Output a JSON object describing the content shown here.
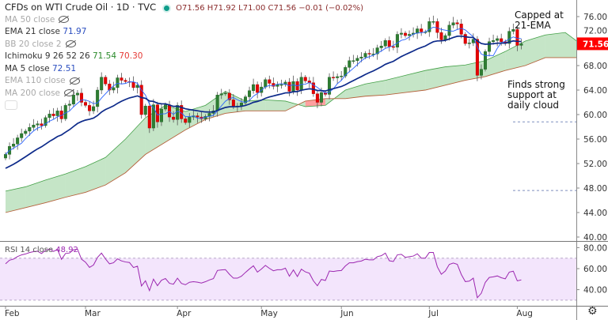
{
  "header": {
    "title": "CFDs on WTI Crude Oil · 1D · TVC",
    "ohlc": "O71.56 H71.92 L71.00 C71.56 −0.01 (−0.02%)"
  },
  "indicators": [
    {
      "label": "MA 50 close",
      "value": "",
      "hidden": true
    },
    {
      "label": "EMA 21 close",
      "value": "71.97",
      "hidden": false
    },
    {
      "label": "BB 20 close 2",
      "value": "",
      "hidden": true
    },
    {
      "label": "Ichimoku 9 26 52 26",
      "value": "71.54",
      "value2": "70.30",
      "hidden": false
    },
    {
      "label": "MA 5 close",
      "value": "72.51",
      "hidden": false
    },
    {
      "label": "EMA 110 close",
      "value": "",
      "hidden": true
    },
    {
      "label": "MA 200 close",
      "value": "",
      "hidden": true
    }
  ],
  "annotations": {
    "capped": "Capped at\n21-EMA",
    "support": "Finds strong\nsupport at\ndaily cloud"
  },
  "rsi": {
    "label": "RSI 14 close",
    "value": "48.92",
    "bands": [
      70,
      30
    ],
    "ticks": [
      "80.00",
      "60.00",
      "40.00"
    ]
  },
  "price_label": "71.56",
  "colors": {
    "up": "#2e7d32",
    "down": "#e50000",
    "ema21": "#0d2a8a",
    "ma5": "#2962ff",
    "cloud_up": "#4caf50",
    "cloud_down": "#ff5252",
    "span_b": "#b5603a",
    "rsi": "#9c27b0",
    "rsi_band": "#f3e5fc"
  },
  "chart_data": {
    "type": "candlestick",
    "y_ticks": [
      "76.00",
      "72.00",
      "68.00",
      "64.00",
      "60.00",
      "56.00",
      "52.00",
      "48.00",
      "44.00",
      "40.00"
    ],
    "ylim": [
      40,
      76
    ],
    "x_ticks": [
      "Feb",
      "Mar",
      "Apr",
      "May",
      "Jun",
      "Jul",
      "Aug"
    ],
    "month_start_bar": [
      0,
      20,
      43,
      64,
      84,
      106,
      128
    ],
    "close": [
      53.5,
      54.8,
      55.2,
      56.2,
      56.9,
      57.3,
      57.9,
      58.3,
      58.5,
      58.2,
      59.5,
      60.1,
      59.8,
      60.6,
      59.3,
      61.5,
      61.7,
      63.2,
      63.5,
      62.0,
      61.5,
      60.6,
      61.3,
      64.0,
      66.1,
      65.0,
      64.0,
      64.4,
      66.0,
      65.6,
      65.4,
      65.3,
      64.4,
      64.8,
      60.0,
      61.4,
      57.8,
      61.6,
      58.8,
      60.9,
      61.6,
      59.6,
      59.2,
      61.5,
      59.3,
      58.7,
      59.6,
      59.8,
      59.6,
      59.3,
      59.7,
      60.2,
      60.6,
      63.2,
      63.4,
      63.5,
      62.4,
      61.4,
      61.4,
      61.9,
      62.9,
      63.9,
      64.9,
      63.6,
      64.5,
      65.7,
      65.1,
      64.6,
      64.9,
      64.9,
      65.3,
      63.8,
      65.4,
      64.0,
      66.1,
      65.5,
      65.2,
      63.4,
      62.0,
      63.6,
      63.3,
      66.1,
      66.0,
      66.2,
      66.3,
      67.7,
      68.8,
      68.8,
      69.2,
      69.4,
      70.0,
      69.9,
      69.9,
      70.9,
      71.2,
      72.1,
      71.1,
      71.0,
      73.1,
      73.3,
      72.9,
      73.1,
      73.3,
      74.0,
      73.5,
      73.5,
      75.2,
      75.2,
      73.4,
      72.2,
      72.9,
      74.6,
      75.0,
      74.8,
      73.1,
      71.6,
      71.7,
      72.3,
      66.4,
      67.4,
      70.3,
      71.9,
      72.1,
      72.4,
      71.9,
      71.6,
      73.6,
      73.9,
      71.3,
      71.56
    ],
    "cloud_span_a": [
      47.5,
      48.2,
      49.3,
      50.3,
      51.5,
      53.0,
      56.0,
      59.5,
      61.5,
      60.5,
      61.5,
      63.8,
      62.2,
      62.4,
      62.2,
      61.3,
      61.5,
      64.0,
      65.0,
      65.6,
      66.4,
      67.2,
      67.8,
      68.1,
      68.8,
      70.3,
      72.0,
      73.0,
      73.4,
      71.0
    ],
    "cloud_span_b": [
      44.0,
      44.8,
      45.6,
      46.5,
      47.3,
      48.5,
      50.5,
      53.5,
      55.5,
      57.5,
      59.2,
      60.2,
      60.6,
      60.6,
      60.6,
      62.2,
      62.6,
      62.6,
      63.0,
      63.2,
      63.6,
      64.0,
      64.8,
      65.6,
      66.2,
      67.2,
      68.0,
      69.3,
      69.3,
      69.3
    ],
    "cloud_step_bars": 5,
    "levels": [
      58.8,
      47.6
    ]
  }
}
